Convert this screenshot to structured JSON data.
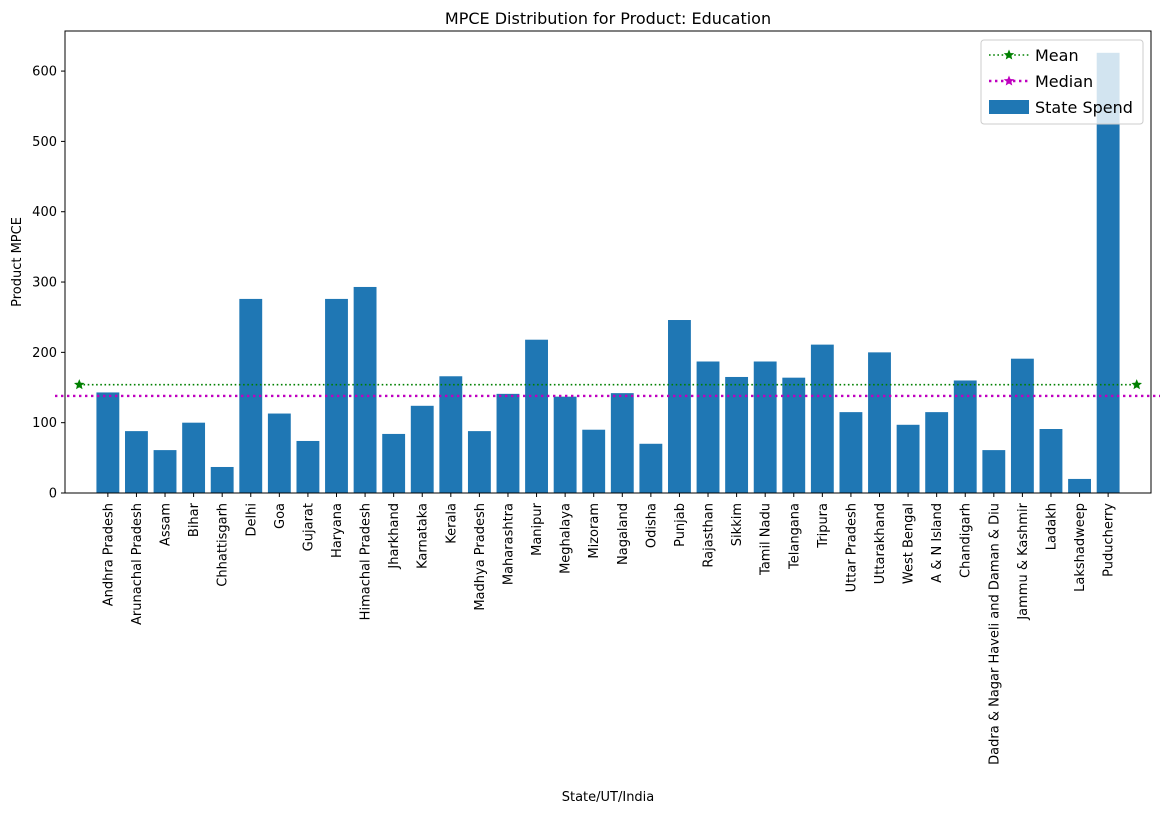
{
  "chart_data": {
    "type": "bar",
    "title": "MPCE Distribution for Product: Education",
    "xlabel": "State/UT/India",
    "ylabel": "Product MPCE",
    "ylim": [
      0,
      657
    ],
    "yticks": [
      0,
      100,
      200,
      300,
      400,
      500,
      600
    ],
    "grid": false,
    "legend_position": "top-right",
    "categories": [
      "Andhra Pradesh",
      "Arunachal Pradesh",
      "Assam",
      "Bihar",
      "Chhattisgarh",
      "Delhi",
      "Goa",
      "Gujarat",
      "Haryana",
      "Himachal Pradesh",
      "Jharkhand",
      "Karnataka",
      "Kerala",
      "Madhya Pradesh",
      "Maharashtra",
      "Manipur",
      "Meghalaya",
      "Mizoram",
      "Nagaland",
      "Odisha",
      "Punjab",
      "Rajasthan",
      "Sikkim",
      "Tamil Nadu",
      "Telangana",
      "Tripura",
      "Uttar Pradesh",
      "Uttarakhand",
      "West Bengal",
      "A & N Island",
      "Chandigarh",
      "Dadra & Nagar Haveli and Daman & Diu",
      "Jammu & Kashmir",
      "Ladakh",
      "Lakshadweep",
      "Puducherry"
    ],
    "series": [
      {
        "name": "State Spend",
        "color": "#1f77b4",
        "values": [
          143,
          88,
          61,
          100,
          37,
          276,
          113,
          74,
          276,
          293,
          84,
          124,
          166,
          88,
          141,
          218,
          137,
          90,
          142,
          70,
          246,
          187,
          165,
          187,
          164,
          211,
          115,
          200,
          97,
          115,
          160,
          61,
          191,
          91,
          20,
          626
        ]
      }
    ],
    "reference_lines": [
      {
        "name": "Mean",
        "value": 154,
        "color": "#008000",
        "style": "dotted",
        "marker": "star"
      },
      {
        "name": "Median",
        "value": 138,
        "color": "#bf00bf",
        "style": "dotted",
        "marker": "star"
      }
    ]
  }
}
